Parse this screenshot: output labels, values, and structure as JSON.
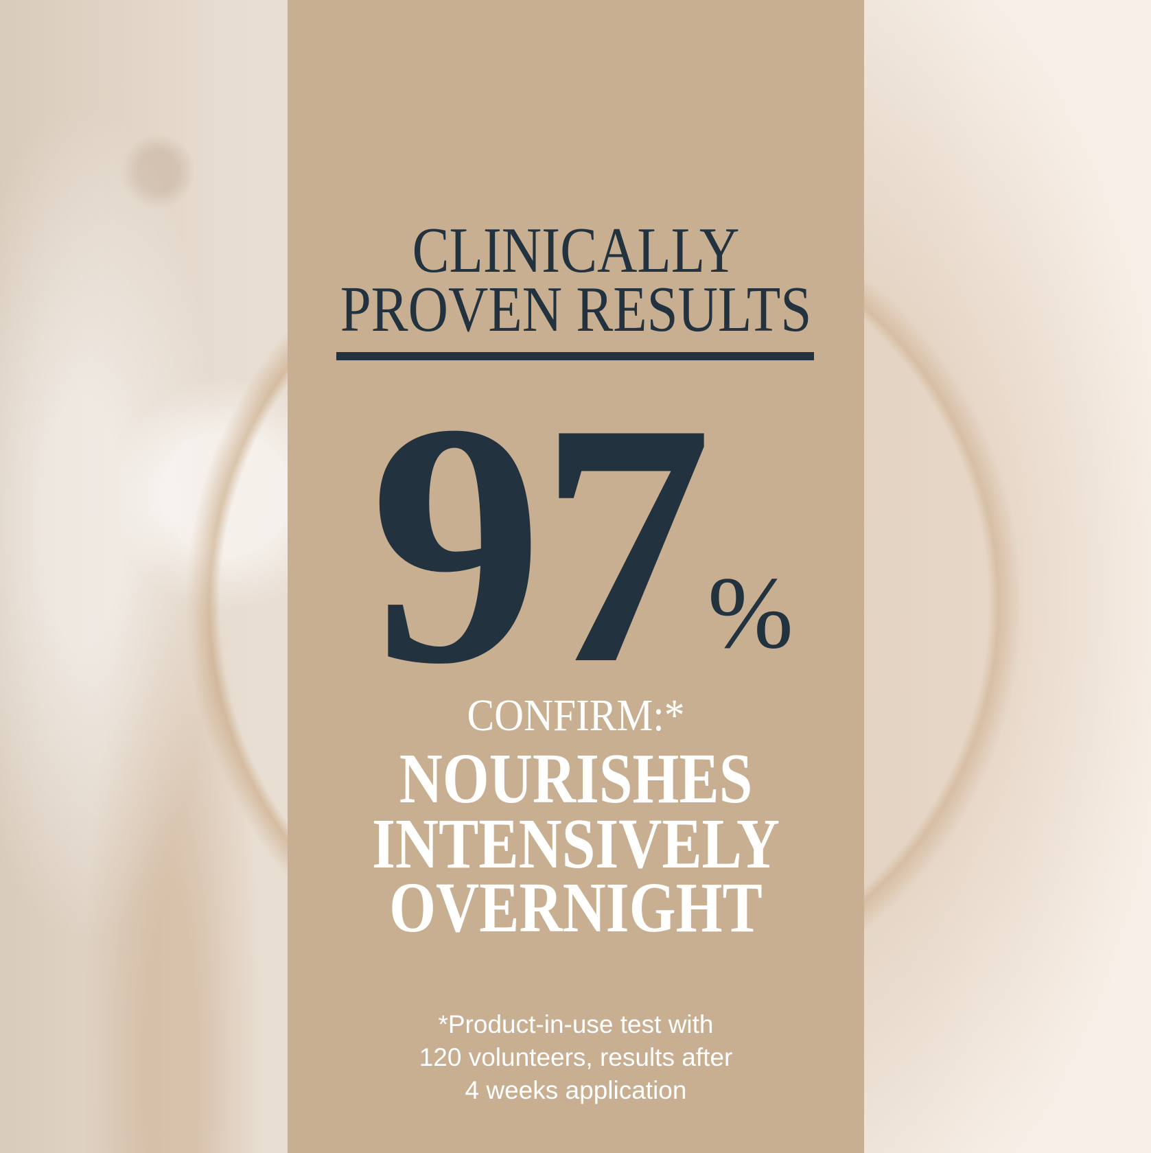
{
  "colors": {
    "panel": "#c8af91",
    "navy": "#22323f",
    "white": "#ffffff"
  },
  "headline": {
    "line1": "CLINICALLY",
    "line2": "PROVEN RESULTS"
  },
  "stat": {
    "value": "97",
    "unit": "%"
  },
  "confirm_label": "CONFIRM:*",
  "claim": {
    "line1": "NOURISHES",
    "line2": "INTENSIVELY",
    "line3": "OVERNIGHT"
  },
  "footnote": {
    "line1": "*Product-in-use test with",
    "line2": "120 volunteers, results after",
    "line3": "4 weeks application"
  }
}
